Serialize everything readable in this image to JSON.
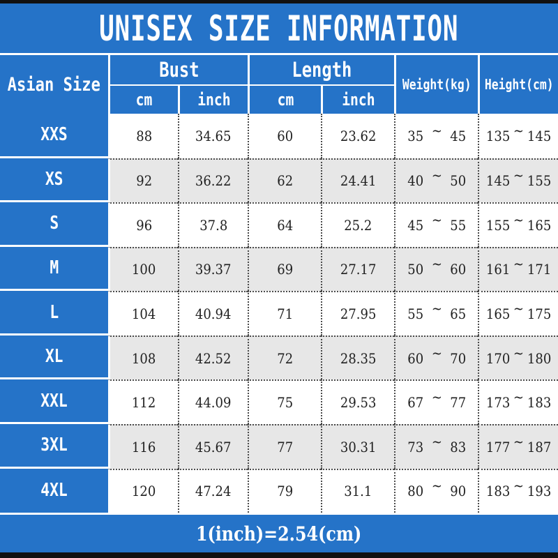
{
  "title": "UNISEX SIZE INFORMATION",
  "footer_note": "1(inch)=2.54(cm)",
  "colors": {
    "blue": "#2573c8",
    "row_alt": "#e7e7e7",
    "bar_black": "#111111",
    "grid_dot": "#4a4a4a",
    "text": "#1f1f1f"
  },
  "table": {
    "col1_header": "Asian Size",
    "tilde": "~",
    "groups": [
      {
        "label": "Bust",
        "subs": [
          "cm",
          "inch"
        ]
      },
      {
        "label": "Length",
        "subs": [
          "cm",
          "inch"
        ]
      }
    ],
    "single_headers": [
      "Weight(kg)",
      "Height(cm)"
    ],
    "rows": [
      {
        "size": "XXS",
        "bust_cm": "88",
        "bust_inch": "34.65",
        "length_cm": "60",
        "length_inch": "23.62",
        "weight_lo": "35",
        "weight_hi": "45",
        "height_lo": "135",
        "height_hi": "145"
      },
      {
        "size": "XS",
        "bust_cm": "92",
        "bust_inch": "36.22",
        "length_cm": "62",
        "length_inch": "24.41",
        "weight_lo": "40",
        "weight_hi": "50",
        "height_lo": "145",
        "height_hi": "155"
      },
      {
        "size": "S",
        "bust_cm": "96",
        "bust_inch": "37.8",
        "length_cm": "64",
        "length_inch": "25.2",
        "weight_lo": "45",
        "weight_hi": "55",
        "height_lo": "155",
        "height_hi": "165"
      },
      {
        "size": "M",
        "bust_cm": "100",
        "bust_inch": "39.37",
        "length_cm": "69",
        "length_inch": "27.17",
        "weight_lo": "50",
        "weight_hi": "60",
        "height_lo": "161",
        "height_hi": "171"
      },
      {
        "size": "L",
        "bust_cm": "104",
        "bust_inch": "40.94",
        "length_cm": "71",
        "length_inch": "27.95",
        "weight_lo": "55",
        "weight_hi": "65",
        "height_lo": "165",
        "height_hi": "175"
      },
      {
        "size": "XL",
        "bust_cm": "108",
        "bust_inch": "42.52",
        "length_cm": "72",
        "length_inch": "28.35",
        "weight_lo": "60",
        "weight_hi": "70",
        "height_lo": "170",
        "height_hi": "180"
      },
      {
        "size": "XXL",
        "bust_cm": "112",
        "bust_inch": "44.09",
        "length_cm": "75",
        "length_inch": "29.53",
        "weight_lo": "67",
        "weight_hi": "77",
        "height_lo": "173",
        "height_hi": "183"
      },
      {
        "size": "3XL",
        "bust_cm": "116",
        "bust_inch": "45.67",
        "length_cm": "77",
        "length_inch": "30.31",
        "weight_lo": "73",
        "weight_hi": "83",
        "height_lo": "177",
        "height_hi": "187"
      },
      {
        "size": "4XL",
        "bust_cm": "120",
        "bust_inch": "47.24",
        "length_cm": "79",
        "length_inch": "31.1",
        "weight_lo": "80",
        "weight_hi": "90",
        "height_lo": "183",
        "height_hi": "193"
      }
    ]
  },
  "chart_data": {
    "type": "table",
    "title": "UNISEX SIZE INFORMATION",
    "columns": [
      "Asian Size",
      "Bust cm",
      "Bust inch",
      "Length cm",
      "Length inch",
      "Weight(kg)",
      "Height(cm)"
    ],
    "rows": [
      [
        "XXS",
        88,
        34.65,
        60,
        23.62,
        "35~45",
        "135~145"
      ],
      [
        "XS",
        92,
        36.22,
        62,
        24.41,
        "40~50",
        "145~155"
      ],
      [
        "S",
        96,
        37.8,
        64,
        25.2,
        "45~55",
        "155~165"
      ],
      [
        "M",
        100,
        39.37,
        69,
        27.17,
        "50~60",
        "161~171"
      ],
      [
        "L",
        104,
        40.94,
        71,
        27.95,
        "55~65",
        "165~175"
      ],
      [
        "XL",
        108,
        42.52,
        72,
        28.35,
        "60~70",
        "170~180"
      ],
      [
        "XXL",
        112,
        44.09,
        75,
        29.53,
        "67~77",
        "173~183"
      ],
      [
        "3XL",
        116,
        45.67,
        77,
        30.31,
        "73~83",
        "177~187"
      ],
      [
        "4XL",
        120,
        47.24,
        79,
        31.1,
        "80~90",
        "183~193"
      ]
    ],
    "note": "1(inch)=2.54(cm)",
    "layout": "alternating row shading, blue header band and first column, dotted grid lines"
  }
}
